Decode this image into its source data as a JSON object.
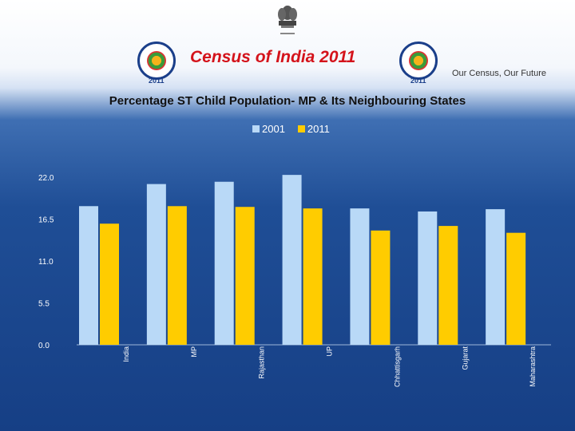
{
  "header": {
    "title": "Census of India  2011",
    "tagline": "Our Census,  Our Future",
    "logo_year": "2011"
  },
  "colors": {
    "series_2001": "#b9d9f7",
    "series_2011": "#ffcc00",
    "title_red": "#d4131b",
    "axis_text": "#ffffff"
  },
  "chart_data": {
    "type": "bar",
    "title": "Percentage ST Child Population- MP & Its Neighbouring States",
    "categories": [
      "India",
      "MP",
      "Rajasthan",
      "UP",
      "Chhattisgarh",
      "Gujarat",
      "Maharashtra"
    ],
    "series": [
      {
        "name": "2001",
        "values": [
          18.2,
          21.1,
          21.4,
          22.3,
          17.9,
          17.5,
          17.8
        ]
      },
      {
        "name": "2011",
        "values": [
          15.9,
          18.2,
          18.1,
          17.9,
          15.0,
          15.6,
          14.7
        ]
      }
    ],
    "ylim": [
      0,
      22
    ],
    "yticks": [
      "0.0",
      "5.5",
      "11.0",
      "16.5",
      "22.0"
    ],
    "xlabel": "",
    "ylabel": "",
    "legend": "top-center",
    "grid": false
  }
}
